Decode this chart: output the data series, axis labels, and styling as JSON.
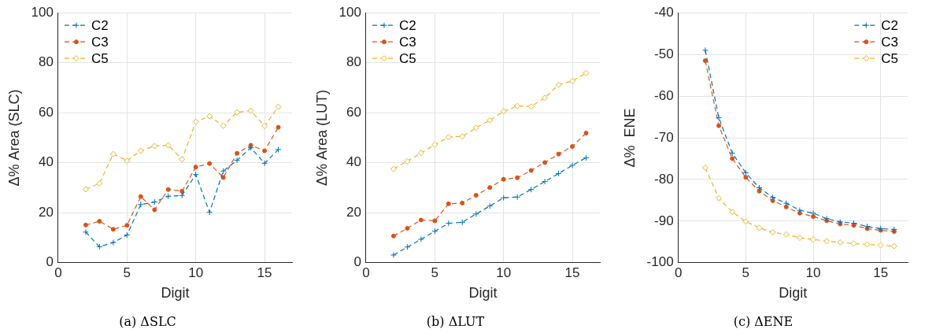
{
  "chart_data": [
    {
      "type": "line",
      "title": "(a) ΔSLC",
      "xlabel": "Digit",
      "ylabel": "Δ% Area (SLC)",
      "x": [
        2,
        3,
        4,
        5,
        6,
        7,
        8,
        9,
        10,
        11,
        12,
        13,
        14,
        15,
        16
      ],
      "xlim": [
        0,
        17
      ],
      "xticks": [
        0,
        5,
        10,
        15
      ],
      "ylim": [
        0,
        100
      ],
      "yticks": [
        0,
        20,
        40,
        60,
        80,
        100
      ],
      "grid": true,
      "legend": "top left",
      "line_style": "dashed",
      "series": [
        {
          "name": "C2",
          "color": "#0072bd",
          "marker": "cross",
          "values": [
            12.3,
            6.4,
            8.1,
            11.1,
            23.3,
            24.3,
            26.6,
            26.9,
            35.3,
            20.2,
            36.7,
            41.0,
            46.0,
            39.8,
            45.3
          ]
        },
        {
          "name": "C3",
          "color": "#d95319",
          "marker": "circle",
          "values": [
            15.1,
            16.6,
            13.4,
            15.0,
            26.5,
            21.2,
            29.3,
            28.6,
            38.3,
            39.7,
            34.1,
            43.8,
            47.0,
            44.8,
            54.2
          ]
        },
        {
          "name": "C5",
          "color": "#edb120",
          "marker": "diamond",
          "values": [
            29.4,
            31.8,
            43.5,
            40.8,
            44.8,
            46.7,
            47.0,
            41.4,
            56.4,
            58.6,
            54.8,
            60.2,
            60.8,
            54.7,
            62.4
          ]
        }
      ]
    },
    {
      "type": "line",
      "title": "(b) ΔLUT",
      "xlabel": "Digit",
      "ylabel": "Δ% Area (LUT)",
      "x": [
        2,
        3,
        4,
        5,
        6,
        7,
        8,
        9,
        10,
        11,
        12,
        13,
        14,
        15,
        16
      ],
      "xlim": [
        0,
        17
      ],
      "xticks": [
        0,
        5,
        10,
        15
      ],
      "ylim": [
        0,
        100
      ],
      "yticks": [
        0,
        20,
        40,
        60,
        80,
        100
      ],
      "grid": true,
      "legend": "top left",
      "line_style": "dashed",
      "series": [
        {
          "name": "C2",
          "color": "#0072bd",
          "marker": "cross",
          "values": [
            3.1,
            6.3,
            9.4,
            12.6,
            15.8,
            16.2,
            19.5,
            22.7,
            26.0,
            26.3,
            29.3,
            32.5,
            35.7,
            39.0,
            42.0
          ]
        },
        {
          "name": "C3",
          "color": "#d95319",
          "marker": "circle",
          "values": [
            10.7,
            13.8,
            17.1,
            16.8,
            23.6,
            23.9,
            27.0,
            30.1,
            33.4,
            34.0,
            36.9,
            40.1,
            43.5,
            46.5,
            51.9
          ]
        },
        {
          "name": "C5",
          "color": "#edb120",
          "marker": "diamond",
          "values": [
            37.5,
            40.6,
            43.9,
            47.2,
            50.3,
            50.5,
            54.0,
            57.0,
            60.6,
            62.7,
            62.5,
            66.0,
            71.2,
            72.7,
            75.9
          ]
        }
      ]
    },
    {
      "type": "line",
      "title": "(c) ΔENE",
      "xlabel": "Digit",
      "ylabel": "Δ%  ENE",
      "x": [
        2,
        3,
        4,
        5,
        6,
        7,
        8,
        9,
        10,
        11,
        12,
        13,
        14,
        15,
        16
      ],
      "xlim": [
        0,
        17
      ],
      "xticks": [
        0,
        5,
        10,
        15
      ],
      "ylim": [
        -100,
        -40
      ],
      "yticks": [
        -100,
        -90,
        -80,
        -70,
        -60,
        -50,
        -40
      ],
      "grid": true,
      "legend": "top right",
      "line_style": "dashed",
      "series": [
        {
          "name": "C2",
          "color": "#0072bd",
          "marker": "cross",
          "values": [
            -49.0,
            -65.2,
            -73.7,
            -78.4,
            -82.0,
            -84.3,
            -85.7,
            -87.4,
            -88.1,
            -89.4,
            -90.2,
            -90.5,
            -91.3,
            -91.8,
            -92.0
          ]
        },
        {
          "name": "C3",
          "color": "#d95319",
          "marker": "circle",
          "values": [
            -51.5,
            -67.1,
            -75.0,
            -79.5,
            -82.8,
            -85.1,
            -86.6,
            -88.1,
            -88.9,
            -89.9,
            -90.7,
            -91.0,
            -91.8,
            -92.2,
            -92.5
          ]
        },
        {
          "name": "C5",
          "color": "#edb120",
          "marker": "diamond",
          "values": [
            -77.2,
            -84.5,
            -87.8,
            -90.1,
            -91.6,
            -92.7,
            -93.2,
            -94.0,
            -94.4,
            -94.8,
            -95.1,
            -95.4,
            -95.6,
            -95.8,
            -96.0
          ]
        }
      ]
    }
  ]
}
